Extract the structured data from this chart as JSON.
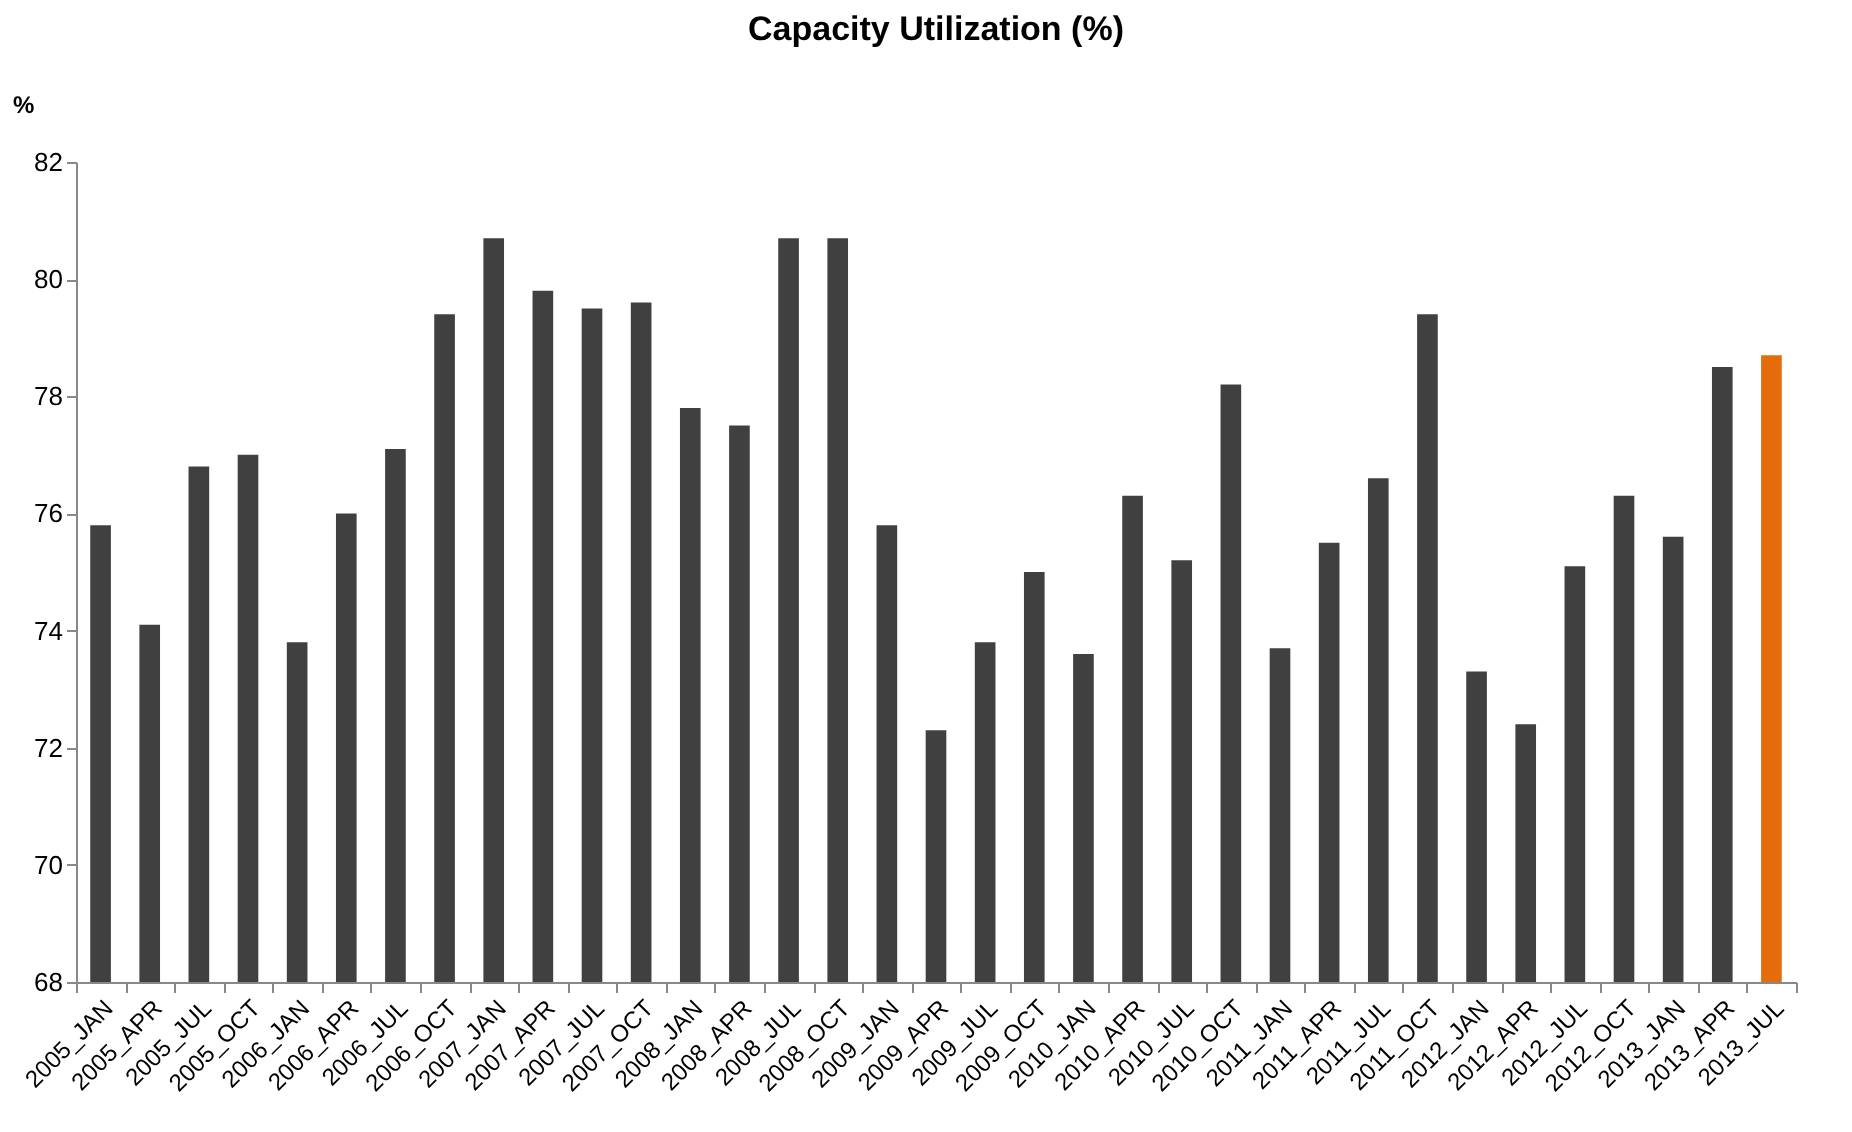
{
  "chart_data": {
    "type": "bar",
    "title": "Capacity Utilization (%)",
    "ylabel": "%",
    "categories": [
      "2005_JAN",
      "2005_APR",
      "2005_JUL",
      "2005_OCT",
      "2006_JAN",
      "2006_APR",
      "2006_JUL",
      "2006_OCT",
      "2007_JAN",
      "2007_APR",
      "2007_JUL",
      "2007_OCT",
      "2008_JAN",
      "2008_APR",
      "2008_JUL",
      "2008_OCT",
      "2009_JAN",
      "2009_APR",
      "2009_JUL",
      "2009_OCT",
      "2010_JAN",
      "2010_APR",
      "2010_JUL",
      "2010_OCT",
      "2011_JAN",
      "2011_APR",
      "2011_JUL",
      "2011_OCT",
      "2012_JAN",
      "2012_APR",
      "2012_JUL",
      "2012_OCT",
      "2013_JAN",
      "2013_APR",
      "2013_JUL"
    ],
    "values": [
      75.8,
      74.1,
      76.8,
      77.0,
      73.8,
      76.0,
      77.1,
      79.4,
      80.7,
      79.8,
      79.5,
      79.6,
      77.8,
      77.5,
      80.7,
      80.7,
      75.8,
      72.3,
      73.8,
      75.0,
      73.6,
      76.3,
      75.2,
      78.2,
      73.7,
      75.5,
      76.6,
      79.4,
      73.3,
      72.4,
      75.1,
      76.3,
      75.6,
      78.5,
      78.7
    ],
    "colors": [
      "#404040",
      "#404040",
      "#404040",
      "#404040",
      "#404040",
      "#404040",
      "#404040",
      "#404040",
      "#404040",
      "#404040",
      "#404040",
      "#404040",
      "#404040",
      "#404040",
      "#404040",
      "#404040",
      "#404040",
      "#404040",
      "#404040",
      "#404040",
      "#404040",
      "#404040",
      "#404040",
      "#404040",
      "#404040",
      "#404040",
      "#404040",
      "#404040",
      "#404040",
      "#404040",
      "#404040",
      "#404040",
      "#404040",
      "#404040",
      "#e46c0a"
    ],
    "ylim": [
      68,
      82
    ],
    "yticks": [
      68,
      70,
      72,
      74,
      76,
      78,
      80,
      82
    ],
    "grid": false
  }
}
